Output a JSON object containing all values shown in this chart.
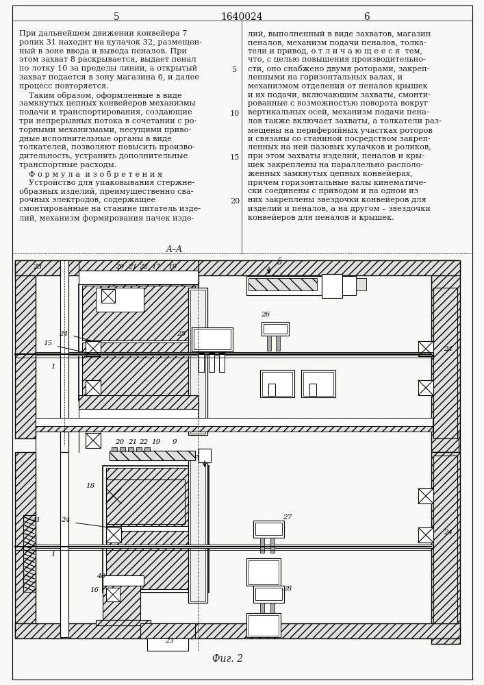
{
  "page_numbers": [
    "5",
    "1640024",
    "6"
  ],
  "left_text_lines": [
    "При дальнейшем движении конвейера 7",
    "ролик 31 находит на кулачок 32, размещен-",
    "ный в зоне ввода и вывода пеналов. При",
    "этом захват 8 раскрывается, выдает пенал",
    "по лотку 10 за пределы линии, а открытый",
    "захват подается в зону магазина 6, и далее",
    "процесс повторяется.",
    "    Таким образом, оформленные в виде",
    "замкнутых цепных конвейеров механизмы",
    "подачи и транспортирования, создающие",
    "три непрерывных потока в сочетании с ро-",
    "торными механизмами, несущими приво-",
    "дные исполнительные органы в виде",
    "толкателей, позволяют повысить произво-",
    "дительность, устранить дополнительные",
    "транспортные расходы.",
    "    Ф о р м у л а  и з о б р е т е н и я",
    "    Устройство для упаковывания стержне-",
    "образных изделий, преимущественно сва-",
    "рочных электродов, содержащее",
    "смонтированные на станине питатель изде-",
    "лий, механизм формирования пачек изде-"
  ],
  "right_text_lines": [
    "лий, выполненный в виде захватов, магазин",
    "пеналов, механизм подачи пеналов, толка-",
    "тели и привод, о т л и ч а ю щ е е с я  тем,",
    "что, с целью повышения производительно-",
    "сти, оно снабжено двумя роторами, закреп-",
    "ленными на горизонтальных валах, и",
    "механизмом отделения от пеналов крышек",
    "и их подачи, включающим захваты, смонти-",
    "рованные с возможностью поворота вокруг",
    "вертикальных осей, механизм подачи пена-",
    "лов также включает захваты, а толкатели раз-",
    "мещены на периферийных участках роторов",
    "и связаны со станиной посредством закреп-",
    "ленных на ней пазовых кулачков и роликов,",
    "при этом захваты изделий, пеналов и кры-",
    "шек закреплены на параллельно располо-",
    "женных замкнутых цепных конвейерах,",
    "причем горизонтальные валы кинематиче-",
    "ски соединены с приводом и на одном из",
    "них закреплены звездочки конвейеров для",
    "изделий и пеналов, а на другом – звездочки",
    "конвейеров для пеналов и крышек."
  ],
  "line_number_indices": [
    4,
    9,
    14,
    19
  ],
  "line_numbers": [
    "5",
    "10",
    "15",
    "20"
  ],
  "section_label": "A–A",
  "figure_label": "Фиг. 2",
  "bg_color": "#f8f8f5",
  "text_color": "#1a1a1a",
  "hatch_color": "#555555"
}
